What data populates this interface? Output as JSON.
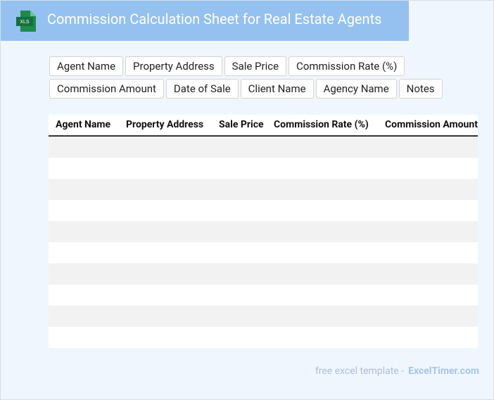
{
  "header": {
    "icon_label": "XLS",
    "title": "Commission Calculation Sheet for Real Estate Agents"
  },
  "tags": [
    "Agent Name",
    "Property Address",
    "Sale Price",
    "Commission Rate (%)",
    "Commission Amount",
    "Date of Sale",
    "Client Name",
    "Agency Name",
    "Notes"
  ],
  "table": {
    "columns": [
      "Agent Name",
      "Property Address",
      "Sale Price",
      "Commission Rate (%)",
      "Commission Amount"
    ]
  },
  "footer": {
    "text": "free excel template -",
    "link": "ExcelTimer.com"
  }
}
